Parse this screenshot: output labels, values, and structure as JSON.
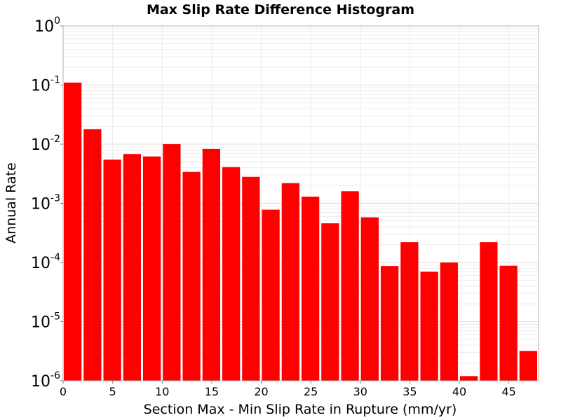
{
  "chart_data": {
    "type": "bar",
    "title": "Max Slip Rate Difference Histogram",
    "xlabel": "Section Max - Min Slip Rate in Rupture (mm/yr)",
    "ylabel": "Annual Rate",
    "x_scale": "linear",
    "y_scale": "log",
    "xlim": [
      0,
      48
    ],
    "ylim": [
      1e-06,
      1
    ],
    "x_ticks": [
      0,
      5,
      10,
      15,
      20,
      25,
      30,
      35,
      40,
      45
    ],
    "y_ticks": [
      {
        "base": "10",
        "exp": "0",
        "value": 1
      },
      {
        "base": "10",
        "exp": "-1",
        "value": 0.1
      },
      {
        "base": "10",
        "exp": "-2",
        "value": 0.01
      },
      {
        "base": "10",
        "exp": "-3",
        "value": 0.001
      },
      {
        "base": "10",
        "exp": "-4",
        "value": 0.0001
      },
      {
        "base": "10",
        "exp": "-5",
        "value": 1e-05
      },
      {
        "base": "10",
        "exp": "-6",
        "value": 1e-06
      }
    ],
    "bin_width": 2,
    "bar_color": "#ff0000",
    "grid": true,
    "bars": [
      {
        "x_start": 0,
        "value": 0.11
      },
      {
        "x_start": 2,
        "value": 0.018
      },
      {
        "x_start": 4,
        "value": 0.0055
      },
      {
        "x_start": 6,
        "value": 0.0068
      },
      {
        "x_start": 8,
        "value": 0.0062
      },
      {
        "x_start": 10,
        "value": 0.01
      },
      {
        "x_start": 12,
        "value": 0.0034
      },
      {
        "x_start": 14,
        "value": 0.0083
      },
      {
        "x_start": 16,
        "value": 0.0041
      },
      {
        "x_start": 18,
        "value": 0.0028
      },
      {
        "x_start": 20,
        "value": 0.00078
      },
      {
        "x_start": 22,
        "value": 0.0022
      },
      {
        "x_start": 24,
        "value": 0.0013
      },
      {
        "x_start": 26,
        "value": 0.00046
      },
      {
        "x_start": 28,
        "value": 0.0016
      },
      {
        "x_start": 30,
        "value": 0.00058
      },
      {
        "x_start": 32,
        "value": 8.7e-05
      },
      {
        "x_start": 34,
        "value": 0.00022
      },
      {
        "x_start": 36,
        "value": 7e-05
      },
      {
        "x_start": 38,
        "value": 0.0001
      },
      {
        "x_start": 40,
        "value": 1.2e-06
      },
      {
        "x_start": 42,
        "value": 0.00022
      },
      {
        "x_start": 44,
        "value": 8.8e-05
      },
      {
        "x_start": 46,
        "value": 3.2e-06
      }
    ]
  }
}
